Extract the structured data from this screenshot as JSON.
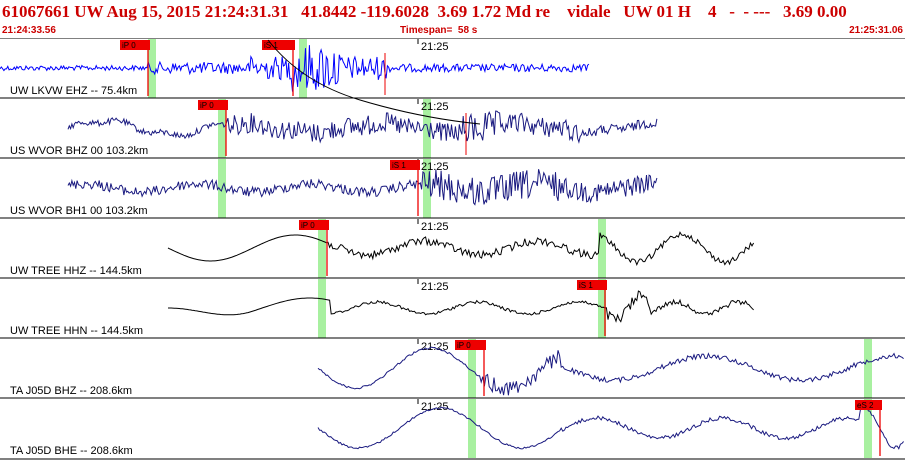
{
  "header": {
    "title": "61067661 UW Aug 15, 2015 21:24:31.31   41.8442 -119.6028  3.69 1.72 Md re    vidale   UW 01 H    4   -  - ---   3.69 0.00",
    "start_time": "21:24:33.56",
    "timespan": "Timespan=  58 s",
    "end_time": "21:25:31.06"
  },
  "colors": {
    "header_text": "#cc0000",
    "trace_blue": "#0000ff",
    "trace_navy": "#1a1a80",
    "trace_black": "#000000",
    "pick_flag": "#ee0000",
    "pick_window": "#a8f0a0"
  },
  "channels": [
    {
      "label": "UW LKVW EHZ -- 75.4km",
      "time_label": "21:25",
      "trace_color": "blue",
      "picks": [
        {
          "label": "iP 0"
        },
        {
          "label": "iS 1"
        }
      ]
    },
    {
      "label": "US WVOR BHZ 00 103.2km",
      "time_label": "21:25",
      "trace_color": "navy",
      "picks": [
        {
          "label": "iP 0"
        }
      ]
    },
    {
      "label": "US WVOR BH1 00 103.2km",
      "time_label": "21:25",
      "trace_color": "navy",
      "picks": [
        {
          "label": "iS 1"
        }
      ]
    },
    {
      "label": "UW TREE HHZ -- 144.5km",
      "time_label": "21:25",
      "trace_color": "black",
      "picks": [
        {
          "label": "iP 0"
        }
      ]
    },
    {
      "label": "UW TREE HHN -- 144.5km",
      "time_label": "21:25",
      "trace_color": "black",
      "picks": [
        {
          "label": "iS 1"
        }
      ]
    },
    {
      "label": "TA J05D BHZ -- 208.6km",
      "time_label": "21:25",
      "trace_color": "navy",
      "picks": [
        {
          "label": "iP 0"
        }
      ]
    },
    {
      "label": "TA J05D BHE -- 208.6km",
      "time_label": "21:25",
      "trace_color": "navy",
      "picks": [
        {
          "label": "eS 2"
        }
      ]
    }
  ]
}
